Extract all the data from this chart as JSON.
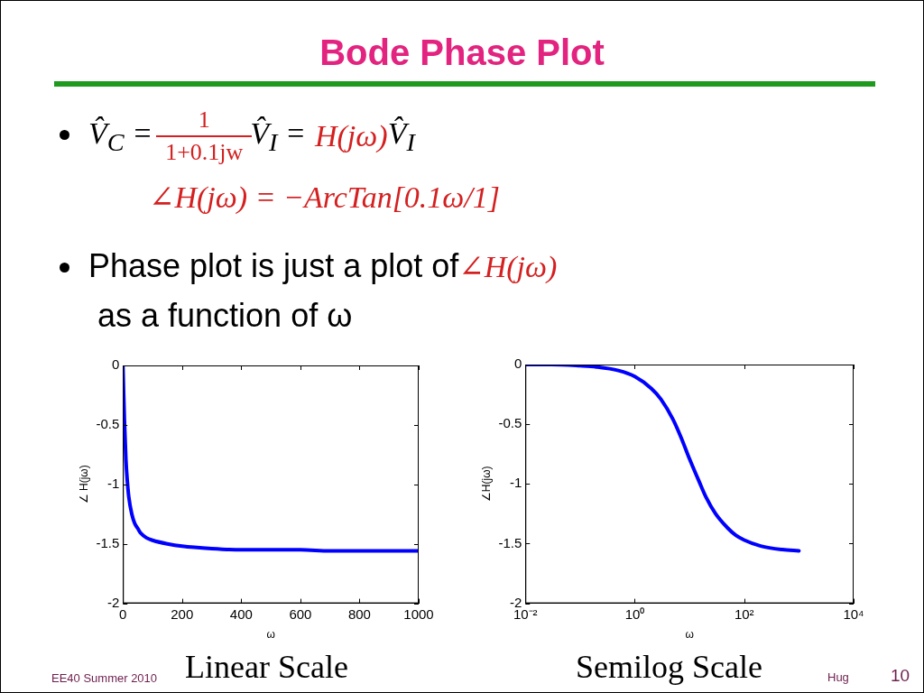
{
  "chart_data": [
    {
      "type": "line",
      "title": "Bode Phase Plot",
      "xlabel": "ω",
      "ylabel": "∠ H(jω)",
      "x": [
        0,
        2,
        5,
        10,
        15,
        20,
        30,
        40,
        50,
        60,
        80,
        100,
        150,
        200,
        300,
        400,
        500,
        600,
        700,
        800,
        900,
        1000
      ],
      "series": [
        {
          "color": "#0000ff",
          "values": [
            0,
            -0.2,
            -0.46,
            -0.79,
            -0.98,
            -1.11,
            -1.25,
            -1.33,
            -1.37,
            -1.41,
            -1.45,
            -1.47,
            -1.5,
            -1.52,
            -1.54,
            -1.55,
            -1.55,
            -1.55,
            -1.56,
            -1.56,
            -1.56,
            -1.56
          ]
        }
      ],
      "xlim": [
        0,
        1000
      ],
      "xticks": [
        0,
        200,
        400,
        600,
        800,
        1000
      ],
      "ylim": [
        -2,
        0
      ],
      "yticks": [
        -2,
        -1.5,
        -1,
        -0.5,
        0
      ],
      "annotations": [
        "V̂$_{C}$ =",
        "1",
        "1+0.1jw",
        "V̂$_{I}$ =",
        "H(jω)",
        "V̂$_{I}$",
        "∠H(jω) = −ArcTan[0.1ω/1]",
        "Phase plot is just a plot of",
        "∠H(jω)",
        "as a function of ω",
        "Linear Scale",
        "EE40 Summer 2010"
      ]
    },
    {
      "type": "line",
      "xlabel": "ω",
      "ylabel": "∠H(jω)",
      "log": "x",
      "x": [
        0.01,
        0.03,
        0.1,
        0.2,
        0.5,
        1,
        2,
        3,
        5,
        7,
        10,
        15,
        20,
        30,
        50,
        70,
        100,
        200,
        500,
        1000
      ],
      "series": [
        {
          "color": "#0000ff",
          "values": [
            0,
            0,
            -0.01,
            -0.02,
            -0.05,
            -0.1,
            -0.2,
            -0.29,
            -0.46,
            -0.61,
            -0.79,
            -0.98,
            -1.11,
            -1.25,
            -1.37,
            -1.43,
            -1.47,
            -1.52,
            -1.55,
            -1.56
          ]
        }
      ],
      "xlim": [
        0.01,
        10000
      ],
      "xticks": [
        {
          "value": 0.01,
          "label": "10⁻²"
        },
        {
          "value": 1,
          "label": "10⁰"
        },
        {
          "value": 100,
          "label": "10²"
        },
        {
          "value": 10000,
          "label": "10⁴"
        }
      ],
      "ylim": [
        -2,
        0
      ],
      "yticks": [
        -2,
        -1.5,
        -1,
        -0.5,
        0
      ],
      "annotations": [
        "Semilog Scale",
        "Hug",
        "10"
      ]
    }
  ]
}
